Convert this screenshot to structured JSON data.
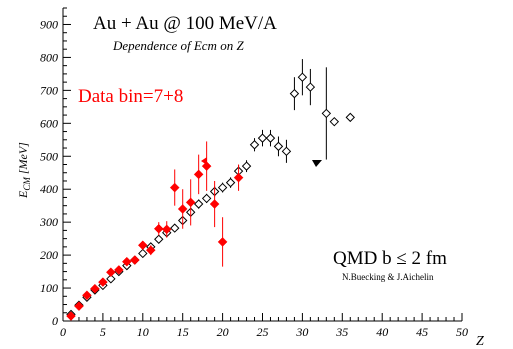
{
  "chart_data": {
    "type": "scatter",
    "title": "Au + Au @ 100 MeV/A",
    "subtitle": "Dependence of Ecm on Z",
    "xlabel": "Z",
    "ylabel": "E_CM [MeV]",
    "xlim": [
      0,
      50
    ],
    "ylim": [
      0,
      950
    ],
    "x_ticks": [
      0,
      5,
      10,
      15,
      20,
      25,
      30,
      35,
      40,
      45,
      50
    ],
    "y_ticks": [
      0,
      100,
      200,
      300,
      400,
      500,
      600,
      700,
      800,
      900
    ],
    "grid": false,
    "annotations": {
      "data_label": "Data  bin=7+8",
      "model_label": "QMD b ≤ 2 fm",
      "credit": "N.Buecking & J.Aichelin"
    },
    "colors": {
      "data": "#ff0000",
      "model": "#000000"
    },
    "series": [
      {
        "name": "QMD b ≤ 2 fm",
        "marker": "open-diamond",
        "points": [
          {
            "x": 1,
            "y": 20,
            "err": 5
          },
          {
            "x": 2,
            "y": 48,
            "err": 5
          },
          {
            "x": 3,
            "y": 72,
            "err": 5
          },
          {
            "x": 4,
            "y": 94,
            "err": 5
          },
          {
            "x": 5,
            "y": 108,
            "err": 6
          },
          {
            "x": 6,
            "y": 128,
            "err": 6
          },
          {
            "x": 7,
            "y": 150,
            "err": 7
          },
          {
            "x": 8,
            "y": 168,
            "err": 7
          },
          {
            "x": 9,
            "y": 185,
            "err": 8
          },
          {
            "x": 10,
            "y": 205,
            "err": 8
          },
          {
            "x": 11,
            "y": 225,
            "err": 9
          },
          {
            "x": 12,
            "y": 248,
            "err": 10
          },
          {
            "x": 13,
            "y": 268,
            "err": 10
          },
          {
            "x": 14,
            "y": 282,
            "err": 10
          },
          {
            "x": 15,
            "y": 305,
            "err": 12
          },
          {
            "x": 16,
            "y": 330,
            "err": 12
          },
          {
            "x": 17,
            "y": 355,
            "err": 14
          },
          {
            "x": 18,
            "y": 372,
            "err": 14
          },
          {
            "x": 19,
            "y": 393,
            "err": 15
          },
          {
            "x": 20,
            "y": 405,
            "err": 15
          },
          {
            "x": 21,
            "y": 420,
            "err": 16
          },
          {
            "x": 22,
            "y": 455,
            "err": 18
          },
          {
            "x": 23,
            "y": 470,
            "err": 18
          },
          {
            "x": 24,
            "y": 535,
            "err": 20
          },
          {
            "x": 25,
            "y": 555,
            "err": 25
          },
          {
            "x": 26,
            "y": 555,
            "err": 25
          },
          {
            "x": 27,
            "y": 530,
            "err": 30
          },
          {
            "x": 28,
            "y": 515,
            "err": 35
          },
          {
            "x": 29,
            "y": 690,
            "err": 50
          },
          {
            "x": 30,
            "y": 740,
            "err": 55
          },
          {
            "x": 31,
            "y": 710,
            "err": 55
          },
          {
            "x": 33,
            "y": 630,
            "err": 140
          },
          {
            "x": 34,
            "y": 605,
            "err": 5
          },
          {
            "x": 36,
            "y": 618,
            "err": 5
          }
        ]
      },
      {
        "name": "Data  bin=7+8",
        "marker": "filled-diamond",
        "points": [
          {
            "x": 1,
            "y": 15,
            "err": 5
          },
          {
            "x": 2,
            "y": 45,
            "err": 5
          },
          {
            "x": 3,
            "y": 78,
            "err": 6
          },
          {
            "x": 4,
            "y": 98,
            "err": 6
          },
          {
            "x": 5,
            "y": 118,
            "err": 6
          },
          {
            "x": 6,
            "y": 148,
            "err": 7
          },
          {
            "x": 7,
            "y": 155,
            "err": 7
          },
          {
            "x": 8,
            "y": 180,
            "err": 8
          },
          {
            "x": 9,
            "y": 185,
            "err": 8
          },
          {
            "x": 10,
            "y": 230,
            "err": 12
          },
          {
            "x": 11,
            "y": 215,
            "err": 15
          },
          {
            "x": 12,
            "y": 280,
            "err": 20
          },
          {
            "x": 13,
            "y": 278,
            "err": 25
          },
          {
            "x": 14,
            "y": 405,
            "err": 55
          },
          {
            "x": 15,
            "y": 340,
            "err": 60
          },
          {
            "x": 16,
            "y": 360,
            "err": 70
          },
          {
            "x": 17,
            "y": 445,
            "err": 60
          },
          {
            "x": 18,
            "y": 470,
            "err": 75
          },
          {
            "x": 19,
            "y": 355,
            "err": 70
          },
          {
            "x": 20,
            "y": 240,
            "err": 75
          },
          {
            "x": 22,
            "y": 435,
            "err": 40
          }
        ]
      }
    ]
  }
}
